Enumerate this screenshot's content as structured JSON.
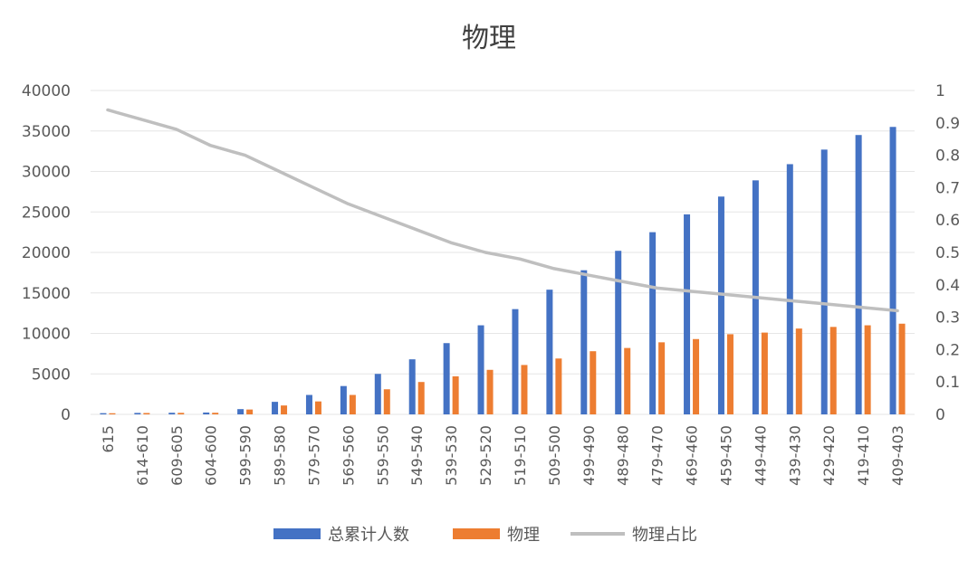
{
  "chart_data": {
    "type": "bar",
    "title": "物理",
    "categories": [
      "615",
      "614-610",
      "609-605",
      "604-600",
      "599-590",
      "589-580",
      "579-570",
      "569-560",
      "559-550",
      "549-540",
      "539-530",
      "529-520",
      "519-510",
      "509-500",
      "499-490",
      "489-480",
      "479-470",
      "469-460",
      "459-450",
      "449-440",
      "439-430",
      "429-420",
      "419-410",
      "409-403"
    ],
    "series": [
      {
        "name": "总累计人数",
        "type": "bar",
        "axis": "left",
        "color": "#4472c4",
        "values": [
          150,
          180,
          200,
          230,
          650,
          1550,
          2400,
          3500,
          5000,
          6800,
          8800,
          11000,
          13000,
          15400,
          17800,
          20200,
          22500,
          24700,
          26900,
          28900,
          30900,
          32700,
          34500,
          35500
        ]
      },
      {
        "name": "物理",
        "type": "bar",
        "axis": "left",
        "color": "#ed7d31",
        "values": [
          140,
          170,
          190,
          200,
          600,
          1100,
          1600,
          2400,
          3100,
          4000,
          4700,
          5500,
          6100,
          6900,
          7800,
          8200,
          8900,
          9300,
          9900,
          10100,
          10600,
          10800,
          11000,
          11200
        ]
      },
      {
        "name": "物理占比",
        "type": "line",
        "axis": "right",
        "color": "#bfbfbf",
        "values": [
          0.94,
          0.91,
          0.88,
          0.83,
          0.8,
          0.75,
          0.7,
          0.65,
          0.61,
          0.57,
          0.53,
          0.5,
          0.48,
          0.45,
          0.43,
          0.41,
          0.39,
          0.38,
          0.37,
          0.36,
          0.35,
          0.34,
          0.33,
          0.32
        ]
      }
    ],
    "y_left": {
      "min": 0,
      "max": 40000,
      "ticks": [
        0,
        5000,
        10000,
        15000,
        20000,
        25000,
        30000,
        35000,
        40000
      ]
    },
    "y_right": {
      "min": 0,
      "max": 1,
      "ticks": [
        "0",
        "0.1",
        "0.2",
        "0.3",
        "0.4",
        "0.5",
        "0.6",
        "0.7",
        "0.8",
        "0.9",
        "1"
      ]
    },
    "grid": true,
    "legend_position": "bottom"
  }
}
